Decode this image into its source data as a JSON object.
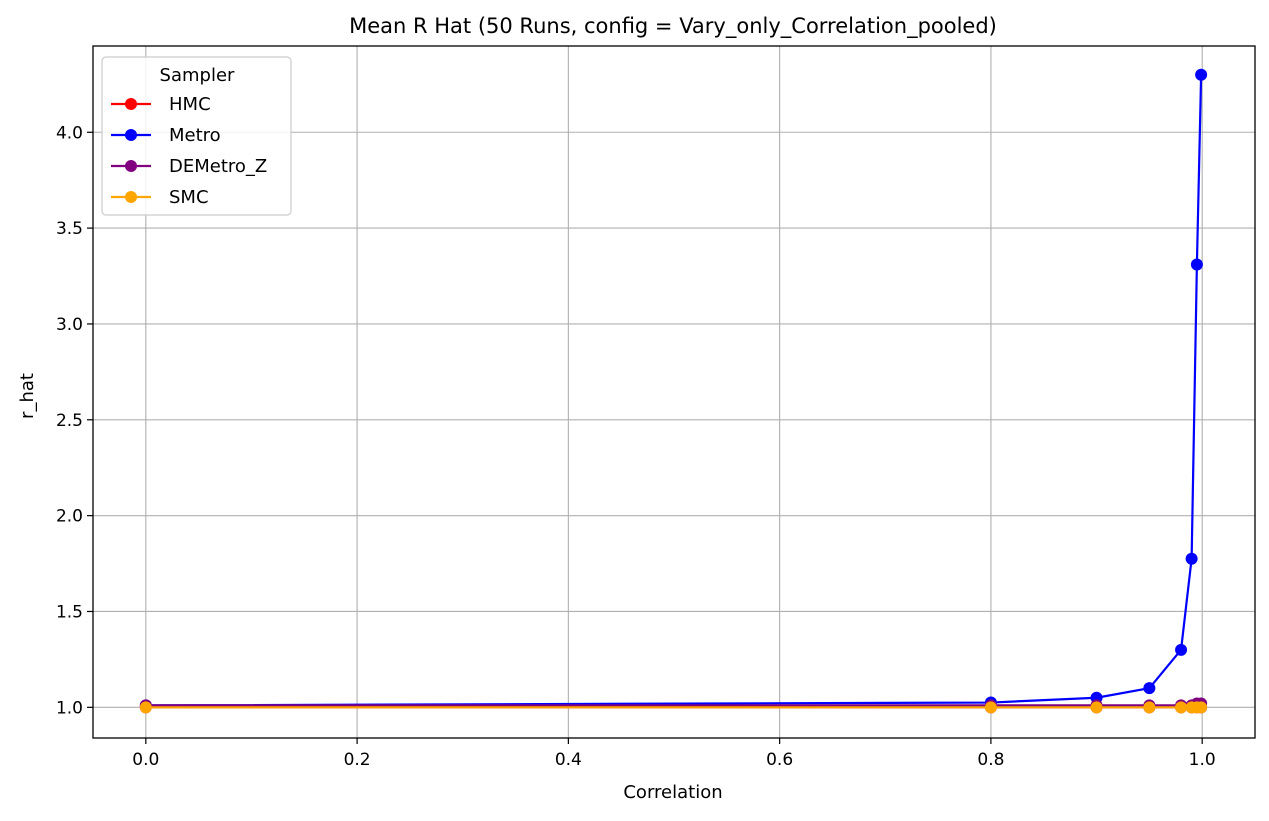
{
  "chart_data": {
    "type": "line",
    "title": "Mean R Hat (50 Runs, config = Vary_only_Correlation_pooled)",
    "xlabel": "Correlation",
    "ylabel": "r_hat",
    "xlim": [
      -0.05,
      1.05
    ],
    "ylim": [
      0.84,
      4.45
    ],
    "xticks": [
      0.0,
      0.2,
      0.4,
      0.6,
      0.8,
      1.0
    ],
    "xtick_labels": [
      "0.0",
      "0.2",
      "0.4",
      "0.6",
      "0.8",
      "1.0"
    ],
    "yticks": [
      1.0,
      1.5,
      2.0,
      2.5,
      3.0,
      3.5,
      4.0
    ],
    "ytick_labels": [
      "1.0",
      "1.5",
      "2.0",
      "2.5",
      "3.0",
      "3.5",
      "4.0"
    ],
    "grid": true,
    "legend": {
      "title": "Sampler",
      "placement": "upper-left"
    },
    "x": [
      0.0,
      0.8,
      0.9,
      0.95,
      0.98,
      0.99,
      0.995,
      0.999
    ],
    "series": [
      {
        "name": "HMC",
        "color": "#ff0000",
        "values": [
          1.0,
          1.0,
          1.0,
          1.0,
          1.0,
          1.0,
          1.0,
          1.0
        ]
      },
      {
        "name": "Metro",
        "color": "#0000ff",
        "values": [
          1.01,
          1.025,
          1.05,
          1.1,
          1.3,
          1.775,
          3.31,
          4.3
        ]
      },
      {
        "name": "DEMetro_Z",
        "color": "#800080",
        "values": [
          1.01,
          1.01,
          1.01,
          1.01,
          1.01,
          1.01,
          1.02,
          1.02
        ]
      },
      {
        "name": "SMC",
        "color": "#ffa500",
        "values": [
          1.0,
          1.0,
          1.0,
          1.0,
          1.0,
          1.0,
          1.0,
          1.0
        ]
      }
    ]
  }
}
